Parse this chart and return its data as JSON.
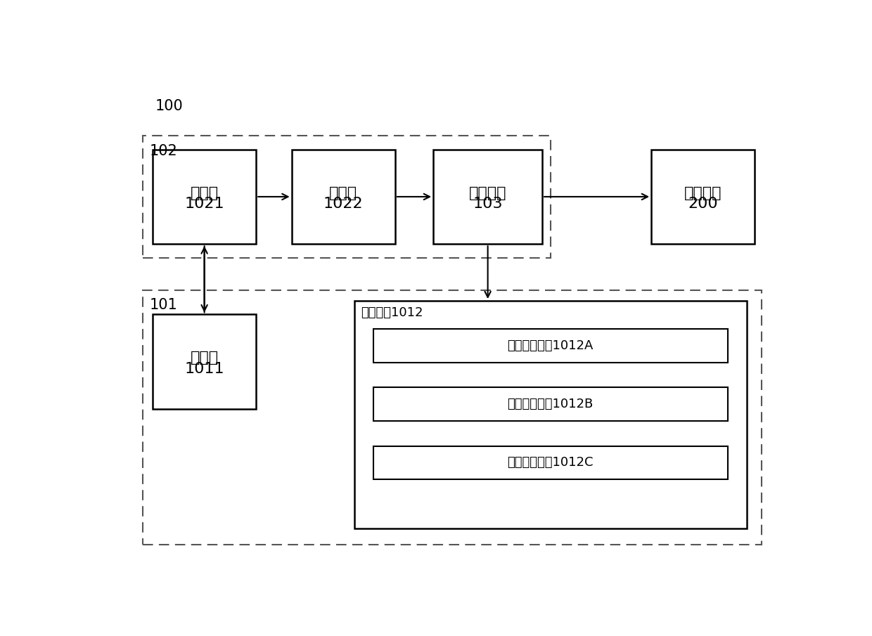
{
  "bg_color": "#ffffff",
  "box_edge_color": "#000000",
  "label_100": "100",
  "label_102": "102",
  "label_101": "101",
  "box_1021_line1": "处理器",
  "box_1021_line2": "1021",
  "box_1022_line1": "控制器",
  "box_1022_line2": "1022",
  "box_103_line1": "执行装置",
  "box_103_line2": "103",
  "box_200_line1": "凿岩台车",
  "box_200_line2": "200",
  "box_1011_line1": "全站仪",
  "box_1011_line2": "1011",
  "box_1012_label": "监测装置1012",
  "box_1012A_text": "角度传感模块1012A",
  "box_1012B_text": "长度传感模块1012B",
  "box_1012C_text": "压力传感模块1012C",
  "font_size_main": 16,
  "font_size_label": 13,
  "font_size_ref": 15
}
